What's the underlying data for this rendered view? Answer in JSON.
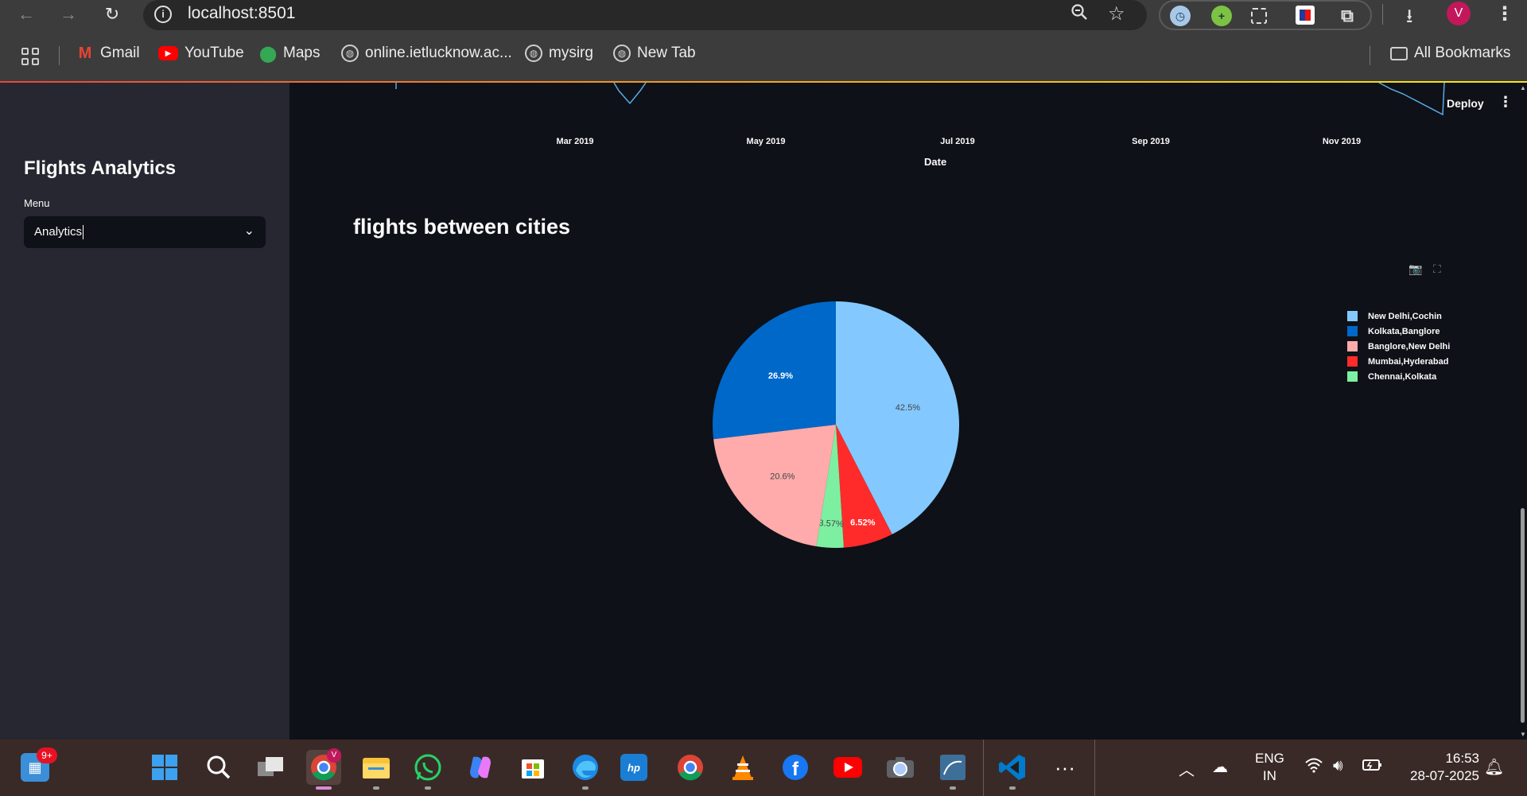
{
  "browser": {
    "url": "localhost:8501",
    "profile_initial": "V",
    "bookmarks": [
      "Gmail",
      "YouTube",
      "Maps",
      "online.ietlucknow.ac...",
      "mysirg",
      "New Tab"
    ],
    "all_bookmarks": "All Bookmarks"
  },
  "sidebar": {
    "title": "Flights Analytics",
    "menu_label": "Menu",
    "menu_value": "Analytics"
  },
  "header": {
    "deploy_label": "Deploy"
  },
  "top_chart": {
    "x_ticks": [
      "Mar 2019",
      "May 2019",
      "Jul 2019",
      "Sep 2019",
      "Nov 2019"
    ],
    "xlabel": "Date"
  },
  "section": {
    "title": "flights between cities"
  },
  "chart_data": {
    "type": "pie",
    "title": "flights between cities",
    "legend_position": "top-right",
    "slices": [
      {
        "label": "New Delhi,Cochin",
        "value": 42.5,
        "display": "42.5%",
        "color": "#83c9ff",
        "text_color": "#444444"
      },
      {
        "label": "Kolkata,Banglore",
        "value": 26.9,
        "display": "26.9%",
        "color": "#0068c9",
        "text_color": "#ffffff"
      },
      {
        "label": "Banglore,New Delhi",
        "value": 20.6,
        "display": "20.6%",
        "color": "#ffabab",
        "text_color": "#444444"
      },
      {
        "label": "Mumbai,Hyderabad",
        "value": 6.52,
        "display": "6.52%",
        "color": "#ff2b2b",
        "text_color": "#ffffff"
      },
      {
        "label": "Chennai,Kolkata",
        "value": 3.57,
        "display": "3.57%",
        "color": "#7defa1",
        "text_color": "#444444"
      }
    ],
    "slice_order": [
      0,
      3,
      4,
      2,
      1
    ]
  },
  "taskbar": {
    "notification_badge": "9+",
    "lang_line1": "ENG",
    "lang_line2": "IN",
    "time": "16:53",
    "date": "28-07-2025"
  }
}
